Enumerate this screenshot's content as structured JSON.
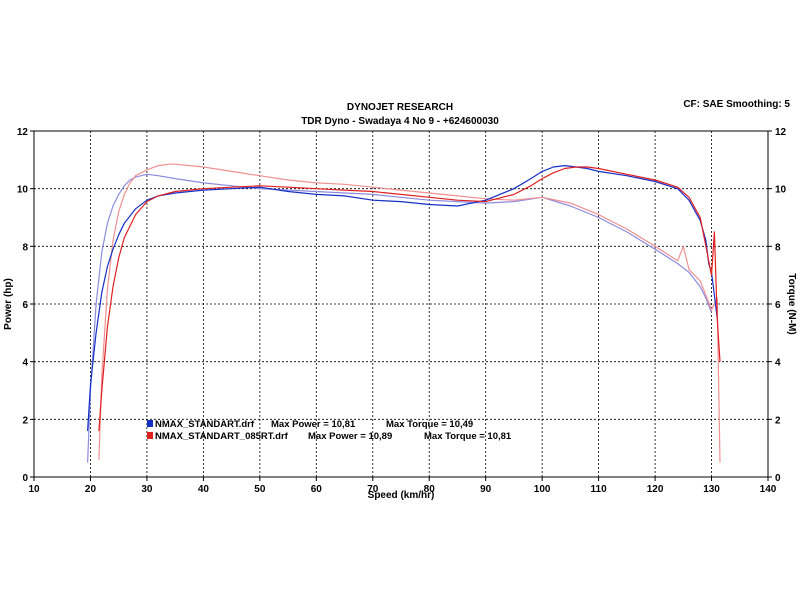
{
  "chart_data": {
    "type": "line",
    "title": "DYNOJET RESEARCH",
    "subtitle": "TDR Dyno - Swadaya 4 No 9 - +624600030",
    "settings_text": "CF: SAE  Smoothing: 5",
    "xlabel": "Speed (km/hr)",
    "ylabel_left": "Power (hp)",
    "ylabel_right": "Torque (N-M)",
    "xlim": [
      10,
      140
    ],
    "ylim": [
      0,
      12
    ],
    "xticks": [
      10,
      20,
      30,
      40,
      50,
      60,
      70,
      80,
      90,
      100,
      110,
      120,
      130,
      140
    ],
    "yticks": [
      0,
      2,
      4,
      6,
      8,
      10,
      12
    ],
    "grid": true,
    "legend_position": "bottom-left",
    "legend": [
      {
        "file": "NMAX_STANDART.drf",
        "power_text": "Max Power = 10,81",
        "torque_text": "Max Torque = 10,49",
        "color": "#1530c8"
      },
      {
        "file": "NMAX_STANDART_085RT.drf",
        "power_text": "Max Power = 10,89",
        "torque_text": "Max Torque = 10,81",
        "color": "#e02020"
      }
    ],
    "series": [
      {
        "name": "NMAX_STANDART.drf",
        "quantity": "Power",
        "color": "#1530c8",
        "x": [
          19.5,
          20,
          21,
          22,
          23,
          24,
          25,
          26,
          28,
          30,
          32,
          35,
          40,
          45,
          50,
          55,
          60,
          65,
          70,
          75,
          80,
          85,
          90,
          95,
          98,
          100,
          102,
          104,
          106,
          108,
          110,
          115,
          120,
          124,
          126,
          128,
          129,
          129.5,
          130,
          130.5,
          131
        ],
        "y": [
          1.6,
          3.2,
          5.0,
          6.4,
          7.3,
          7.9,
          8.4,
          8.8,
          9.3,
          9.6,
          9.75,
          9.85,
          9.95,
          10.0,
          10.05,
          9.9,
          9.8,
          9.75,
          9.6,
          9.55,
          9.45,
          9.4,
          9.6,
          10.0,
          10.35,
          10.6,
          10.75,
          10.8,
          10.75,
          10.7,
          10.6,
          10.45,
          10.25,
          10.0,
          9.6,
          8.9,
          8.2,
          7.4,
          7.1,
          6.3,
          5.5
        ]
      },
      {
        "name": "NMAX_STANDART_085RT.drf",
        "quantity": "Power",
        "color": "#e02020",
        "x": [
          21.5,
          22,
          23,
          24,
          25,
          26,
          28,
          30,
          32,
          35,
          40,
          45,
          50,
          55,
          60,
          65,
          70,
          75,
          80,
          85,
          90,
          95,
          98,
          100,
          102,
          104,
          106,
          108,
          110,
          115,
          120,
          124,
          126,
          128,
          129,
          130,
          130.5,
          131,
          131.5
        ],
        "y": [
          1.6,
          3.0,
          5.2,
          6.6,
          7.6,
          8.3,
          9.1,
          9.55,
          9.75,
          9.9,
          10.0,
          10.05,
          10.1,
          10.05,
          10.0,
          9.95,
          9.9,
          9.8,
          9.7,
          9.6,
          9.55,
          9.8,
          10.1,
          10.35,
          10.55,
          10.7,
          10.75,
          10.75,
          10.7,
          10.5,
          10.3,
          10.05,
          9.7,
          9.0,
          8.0,
          7.0,
          8.5,
          5.5,
          4.0
        ]
      },
      {
        "name": "NMAX_STANDART.drf",
        "quantity": "Torque",
        "color": "#8c8ce0",
        "x": [
          19.5,
          20,
          21,
          22,
          23,
          24,
          25,
          26,
          27,
          28,
          30,
          32,
          35,
          40,
          45,
          50,
          55,
          60,
          65,
          70,
          75,
          80,
          85,
          90,
          95,
          100,
          105,
          110,
          115,
          120,
          124,
          126,
          128,
          129,
          130
        ],
        "y": [
          0.5,
          3.0,
          6.0,
          7.8,
          8.8,
          9.4,
          9.8,
          10.1,
          10.3,
          10.4,
          10.5,
          10.45,
          10.35,
          10.2,
          10.1,
          10.0,
          9.95,
          9.9,
          9.85,
          9.8,
          9.7,
          9.6,
          9.55,
          9.5,
          9.55,
          9.7,
          9.4,
          9.0,
          8.5,
          7.9,
          7.4,
          7.1,
          6.6,
          6.2,
          5.7
        ]
      },
      {
        "name": "NMAX_STANDART_085RT.drf",
        "quantity": "Torque",
        "color": "#f09090",
        "x": [
          21.5,
          22,
          23,
          24,
          25,
          26,
          27,
          28,
          30,
          32,
          34,
          35,
          40,
          45,
          50,
          55,
          60,
          65,
          70,
          75,
          80,
          85,
          90,
          95,
          100,
          105,
          110,
          115,
          120,
          124,
          125,
          126,
          128,
          129,
          130,
          131,
          131.5
        ],
        "y": [
          0.6,
          3.5,
          6.5,
          8.2,
          9.2,
          9.8,
          10.2,
          10.45,
          10.65,
          10.8,
          10.85,
          10.85,
          10.75,
          10.6,
          10.45,
          10.3,
          10.2,
          10.15,
          10.05,
          9.95,
          9.85,
          9.75,
          9.65,
          9.6,
          9.7,
          9.5,
          9.1,
          8.6,
          8.0,
          7.5,
          8.0,
          7.2,
          6.8,
          6.3,
          5.8,
          6.2,
          0.5
        ]
      }
    ]
  }
}
